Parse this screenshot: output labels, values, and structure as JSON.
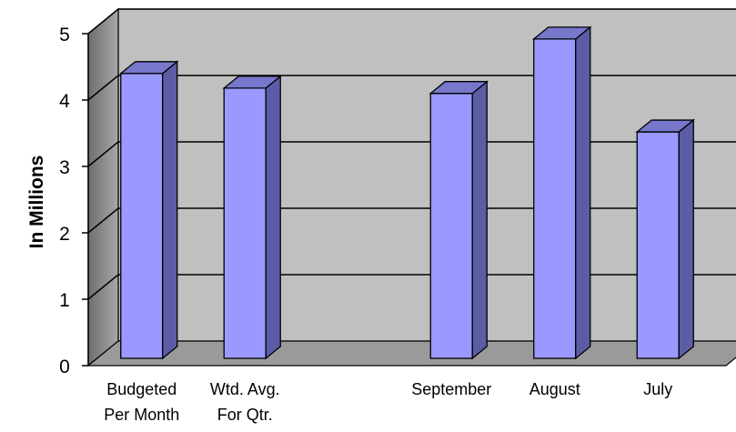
{
  "chart_data": {
    "type": "bar",
    "title": "",
    "xlabel": "",
    "ylabel": "In Millions",
    "ylim": [
      0,
      5
    ],
    "yticks": [
      0,
      1,
      2,
      3,
      4,
      5
    ],
    "grid": true,
    "style": "3d",
    "categories": [
      {
        "line1": "Budgeted",
        "line2": "Per Month"
      },
      {
        "line1": "Wtd. Avg.",
        "line2": "For Qtr."
      },
      {
        "line1": "",
        "line2": ""
      },
      {
        "line1": "September",
        "line2": ""
      },
      {
        "line1": "August",
        "line2": ""
      },
      {
        "line1": "July",
        "line2": ""
      }
    ],
    "values": [
      4.4,
      4.18,
      null,
      4.1,
      4.92,
      3.52
    ],
    "colors": {
      "bar_front": "#9999ff",
      "bar_side": "#5c5ca6",
      "bar_top": "#7777cc",
      "wall": "#c0c0c0",
      "side_wall": "#808080",
      "floor": "#9a9a9a"
    }
  }
}
